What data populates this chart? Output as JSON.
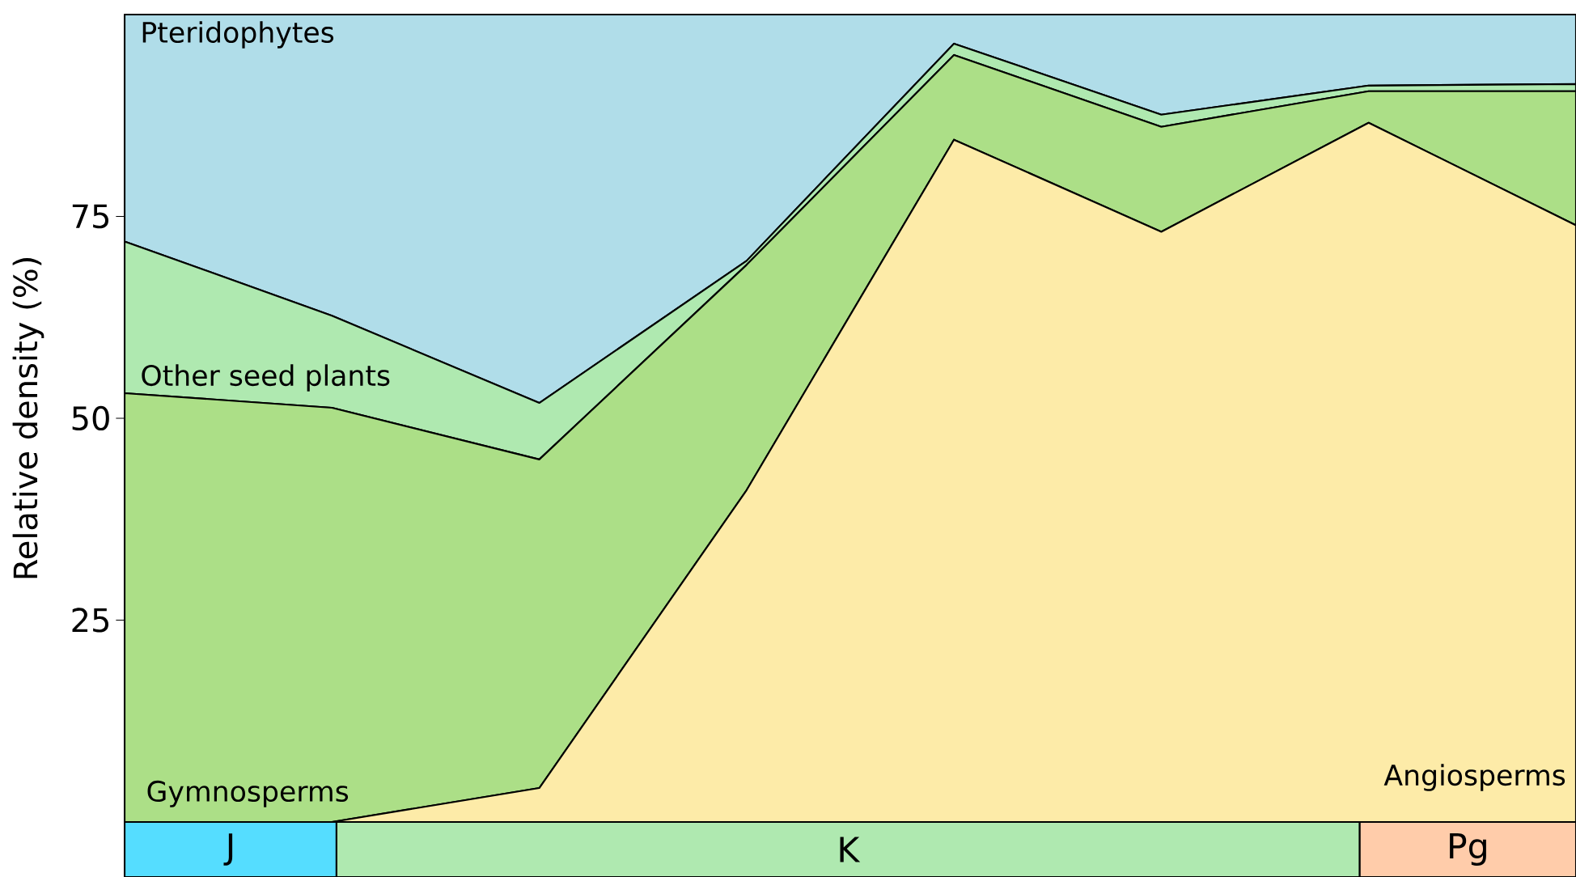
{
  "chart_data": {
    "type": "area",
    "stacked": true,
    "ylabel": "Relative density (%)",
    "categories": [
      null,
      null,
      null,
      null,
      null,
      null,
      null,
      null
    ],
    "ylim": [
      0,
      100
    ],
    "yticks": [
      25,
      50,
      75
    ],
    "tick_labels": "y",
    "series": [
      {
        "name": "Angiosperms",
        "color": "#fdeba8",
        "values": [
          0,
          0,
          4.2,
          41.1,
          84.5,
          73.1,
          86.6,
          73.9
        ]
      },
      {
        "name": "Gymnosperms",
        "color": "#acdf87",
        "values": [
          53.1,
          51.3,
          40.7,
          27.9,
          10.5,
          13,
          3.9,
          16.6
        ]
      },
      {
        "name": "Other seed plants",
        "color": "#afe9b0",
        "values": [
          18.8,
          11.4,
          7,
          0.5,
          1.4,
          1.5,
          0.7,
          0.9
        ]
      },
      {
        "name": "Pteridophytes",
        "color": "#b0dde9",
        "values": [
          28.1,
          37.3,
          48.1,
          30.5,
          3.6,
          12.4,
          8.8,
          8.6
        ]
      }
    ],
    "annotations": [
      "J",
      "K",
      "Pg"
    ]
  }
}
